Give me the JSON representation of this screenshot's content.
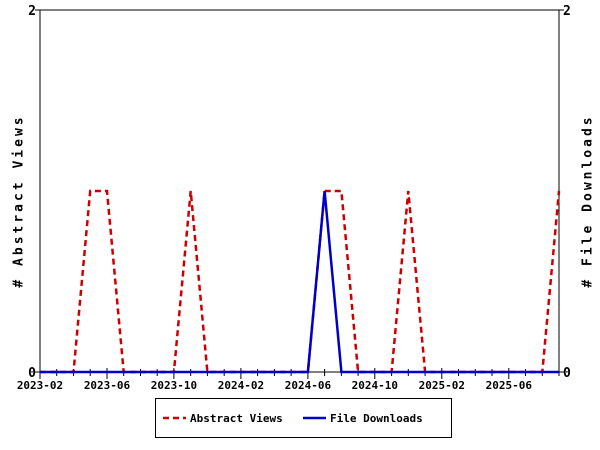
{
  "chart_data": {
    "type": "line",
    "title": "",
    "ylabel_left": "# Abstract Views",
    "ylabel_right": "# File Downloads",
    "ylim": [
      0,
      2
    ],
    "yticks": [
      0,
      2
    ],
    "grid": false,
    "legend_position": "bottom-center",
    "frame_color": "#000000",
    "x": [
      "2023-02",
      "2023-03",
      "2023-04",
      "2023-05",
      "2023-06",
      "2023-07",
      "2023-08",
      "2023-09",
      "2023-10",
      "2023-11",
      "2023-12",
      "2024-01",
      "2024-02",
      "2024-03",
      "2024-04",
      "2024-05",
      "2024-06",
      "2024-07",
      "2024-08",
      "2024-09",
      "2024-10",
      "2024-11",
      "2024-12",
      "2025-01",
      "2025-02",
      "2025-03",
      "2025-04",
      "2025-05",
      "2025-06",
      "2025-07",
      "2025-08",
      "2025-09"
    ],
    "xtick_every": 4,
    "xtick_labels": [
      "2023-02",
      "2023-06",
      "2023-10",
      "2024-02",
      "2024-06",
      "2024-10",
      "2025-02",
      "2025-06"
    ],
    "series": [
      {
        "name": "Abstract Views",
        "axis": "left",
        "color": "#cc0000",
        "style": "dashed",
        "values": [
          0,
          0,
          0,
          1,
          1,
          0,
          0,
          0,
          0,
          1,
          0,
          0,
          0,
          0,
          0,
          0,
          0,
          1,
          1,
          0,
          0,
          0,
          1,
          0,
          0,
          0,
          0,
          0,
          0,
          0,
          0,
          1
        ]
      },
      {
        "name": "File Downloads",
        "axis": "right",
        "color": "#0000cc",
        "style": "solid",
        "values": [
          0,
          0,
          0,
          0,
          0,
          0,
          0,
          0,
          0,
          0,
          0,
          0,
          0,
          0,
          0,
          0,
          0,
          1,
          0,
          0,
          0,
          0,
          0,
          0,
          0,
          0,
          0,
          0,
          0,
          0,
          0,
          0
        ]
      }
    ]
  }
}
